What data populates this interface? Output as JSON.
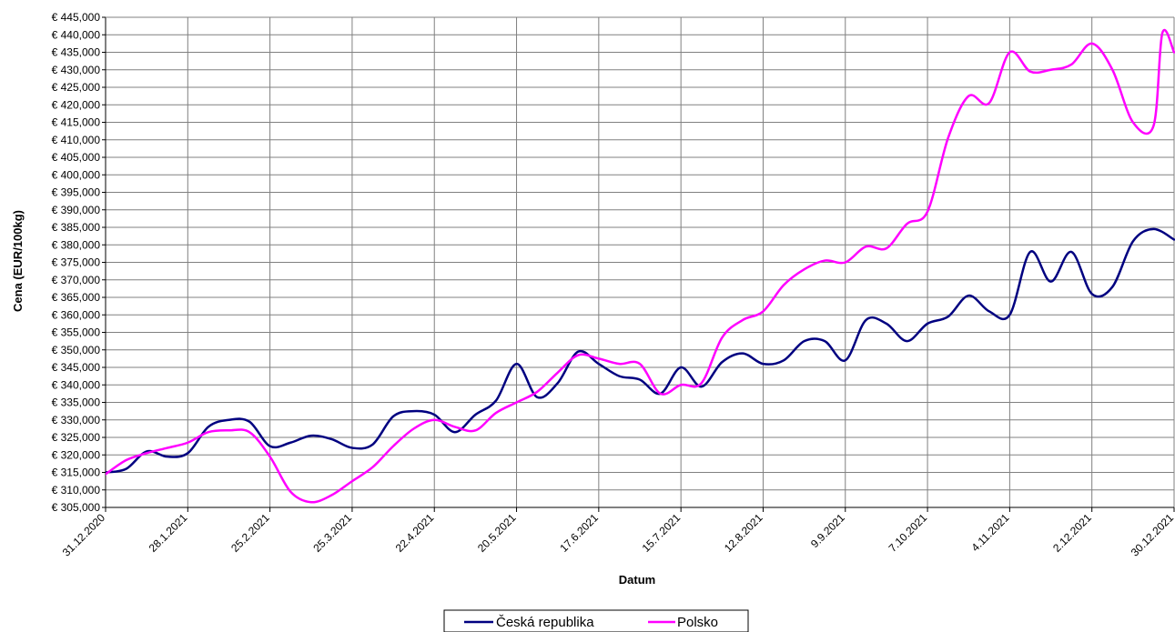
{
  "chart_data": {
    "type": "line",
    "xlabel": "Datum",
    "ylabel": "Cena (EUR/100kg)",
    "x_range": [
      "31.12.2020",
      "30.12.2021"
    ],
    "ylim": [
      305000,
      445000
    ],
    "y_step": 5000,
    "y_tick_labels": [
      "€ 305,000",
      "€ 310,000",
      "€ 315,000",
      "€ 320,000",
      "€ 325,000",
      "€ 330,000",
      "€ 335,000",
      "€ 340,000",
      "€ 345,000",
      "€ 350,000",
      "€ 355,000",
      "€ 360,000",
      "€ 365,000",
      "€ 370,000",
      "€ 375,000",
      "€ 380,000",
      "€ 385,000",
      "€ 390,000",
      "€ 395,000",
      "€ 400,000",
      "€ 405,000",
      "€ 410,000",
      "€ 415,000",
      "€ 420,000",
      "€ 425,000",
      "€ 430,000",
      "€ 435,000",
      "€ 440,000",
      "€ 445,000"
    ],
    "x_tick_labels": [
      "31.12.2020",
      "28.1.2021",
      "25.2.2021",
      "25.3.2021",
      "22.4.2021",
      "20.5.2021",
      "17.6.2021",
      "15.7.2021",
      "12.8.2021",
      "9.9.2021",
      "7.10.2021",
      "4.11.2021",
      "2.12.2021",
      "30.12.2021"
    ],
    "grid": true,
    "legend_position": "bottom",
    "series": [
      {
        "name": "Česká republika",
        "color": "#000080",
        "points": [
          [
            "31.12.2020",
            315000
          ],
          [
            "7.1.2021",
            316000
          ],
          [
            "14.1.2021",
            321000
          ],
          [
            "21.1.2021",
            319500
          ],
          [
            "28.1.2021",
            320500
          ],
          [
            "4.2.2021",
            328000
          ],
          [
            "11.2.2021",
            330000
          ],
          [
            "18.2.2021",
            329500
          ],
          [
            "25.2.2021",
            322500
          ],
          [
            "4.3.2021",
            323500
          ],
          [
            "11.3.2021",
            325500
          ],
          [
            "18.3.2021",
            324500
          ],
          [
            "25.3.2021",
            322000
          ],
          [
            "1.4.2021",
            323000
          ],
          [
            "8.4.2021",
            331000
          ],
          [
            "15.4.2021",
            332500
          ],
          [
            "22.4.2021",
            331500
          ],
          [
            "29.4.2021",
            326500
          ],
          [
            "6.5.2021",
            331500
          ],
          [
            "13.5.2021",
            335500
          ],
          [
            "20.5.2021",
            346000
          ],
          [
            "27.5.2021",
            336500
          ],
          [
            "3.6.2021",
            340500
          ],
          [
            "10.6.2021",
            349500
          ],
          [
            "17.6.2021",
            346000
          ],
          [
            "24.6.2021",
            342500
          ],
          [
            "1.7.2021",
            341500
          ],
          [
            "8.7.2021",
            337500
          ],
          [
            "15.7.2021",
            345000
          ],
          [
            "22.7.2021",
            339500
          ],
          [
            "29.7.2021",
            346500
          ],
          [
            "5.8.2021",
            349000
          ],
          [
            "12.8.2021",
            346000
          ],
          [
            "19.8.2021",
            347000
          ],
          [
            "26.8.2021",
            352500
          ],
          [
            "2.9.2021",
            352500
          ],
          [
            "9.9.2021",
            347000
          ],
          [
            "16.9.2021",
            358500
          ],
          [
            "23.9.2021",
            357500
          ],
          [
            "30.9.2021",
            352500
          ],
          [
            "7.10.2021",
            357500
          ],
          [
            "14.10.2021",
            359500
          ],
          [
            "21.10.2021",
            365500
          ],
          [
            "28.10.2021",
            361000
          ],
          [
            "4.11.2021",
            360000
          ],
          [
            "11.11.2021",
            378000
          ],
          [
            "18.11.2021",
            369500
          ],
          [
            "25.11.2021",
            378000
          ],
          [
            "2.12.2021",
            366000
          ],
          [
            "9.12.2021",
            368000
          ],
          [
            "16.12.2021",
            381000
          ],
          [
            "23.12.2021",
            384500
          ],
          [
            "30.12.2021",
            381500
          ]
        ]
      },
      {
        "name": "Polsko",
        "color": "#FF00FF",
        "points": [
          [
            "31.12.2020",
            314500
          ],
          [
            "7.1.2021",
            318500
          ],
          [
            "14.1.2021",
            320500
          ],
          [
            "21.1.2021",
            322000
          ],
          [
            "28.1.2021",
            323500
          ],
          [
            "4.2.2021",
            326500
          ],
          [
            "11.2.2021",
            327000
          ],
          [
            "18.2.2021",
            326500
          ],
          [
            "25.2.2021",
            319500
          ],
          [
            "4.3.2021",
            309500
          ],
          [
            "11.3.2021",
            306500
          ],
          [
            "18.3.2021",
            308500
          ],
          [
            "25.3.2021",
            312500
          ],
          [
            "1.4.2021",
            316500
          ],
          [
            "8.4.2021",
            322500
          ],
          [
            "15.4.2021",
            327500
          ],
          [
            "22.4.2021",
            330000
          ],
          [
            "29.4.2021",
            328000
          ],
          [
            "6.5.2021",
            327000
          ],
          [
            "13.5.2021",
            332000
          ],
          [
            "20.5.2021",
            335000
          ],
          [
            "27.5.2021",
            338000
          ],
          [
            "3.6.2021",
            343500
          ],
          [
            "10.6.2021",
            348500
          ],
          [
            "17.6.2021",
            347500
          ],
          [
            "24.6.2021",
            346000
          ],
          [
            "1.7.2021",
            346000
          ],
          [
            "8.7.2021",
            337500
          ],
          [
            "15.7.2021",
            340000
          ],
          [
            "22.7.2021",
            340500
          ],
          [
            "29.7.2021",
            353500
          ],
          [
            "5.8.2021",
            358500
          ],
          [
            "12.8.2021",
            361000
          ],
          [
            "19.8.2021",
            368500
          ],
          [
            "26.8.2021",
            373000
          ],
          [
            "2.9.2021",
            375500
          ],
          [
            "9.9.2021",
            375000
          ],
          [
            "16.9.2021",
            379500
          ],
          [
            "23.9.2021",
            379000
          ],
          [
            "30.9.2021",
            386000
          ],
          [
            "7.10.2021",
            389500
          ],
          [
            "14.10.2021",
            410500
          ],
          [
            "21.10.2021",
            422500
          ],
          [
            "28.10.2021",
            420500
          ],
          [
            "4.11.2021",
            435000
          ],
          [
            "11.11.2021",
            429500
          ],
          [
            "18.11.2021",
            430000
          ],
          [
            "25.11.2021",
            431500
          ],
          [
            "2.12.2021",
            437500
          ],
          [
            "9.12.2021",
            430000
          ],
          [
            "16.12.2021",
            415000
          ],
          [
            "23.12.2021",
            414000
          ],
          [
            "26.12.2021",
            440500
          ],
          [
            "30.12.2021",
            435000
          ]
        ]
      }
    ]
  }
}
